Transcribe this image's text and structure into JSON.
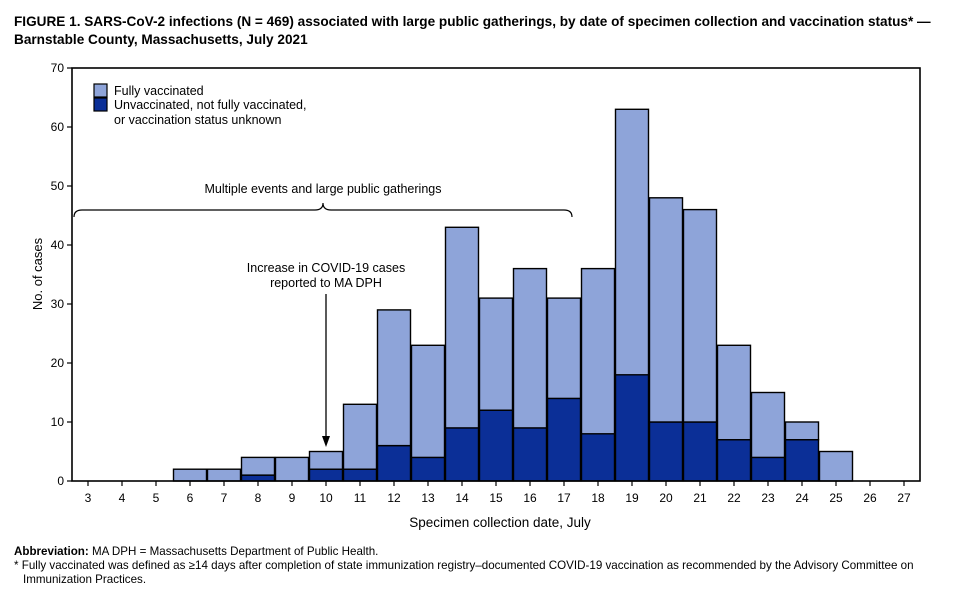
{
  "title": {
    "line1": "FIGURE 1. SARS-CoV-2 infections (N = 469) associated with large public gatherings, by date of specimen collection and vaccination status* —",
    "line2": "Barnstable County, Massachusetts, July 2021"
  },
  "chart_data": {
    "type": "bar",
    "stacked": true,
    "xlabel": "Specimen collection date, July",
    "ylabel": "No. of cases",
    "ylim": [
      0,
      70
    ],
    "yticks": [
      0,
      10,
      20,
      30,
      40,
      50,
      60,
      70
    ],
    "categories": [
      "3",
      "4",
      "5",
      "6",
      "7",
      "8",
      "9",
      "10",
      "11",
      "12",
      "13",
      "14",
      "15",
      "16",
      "17",
      "18",
      "19",
      "20",
      "21",
      "22",
      "23",
      "24",
      "25",
      "26",
      "27"
    ],
    "series": [
      {
        "name": "Unvaccinated, not fully vaccinated, or vaccination status unknown",
        "color": "#0b2f97",
        "values": [
          0,
          0,
          0,
          0,
          0,
          1,
          0,
          2,
          2,
          6,
          4,
          9,
          12,
          9,
          14,
          8,
          18,
          10,
          10,
          7,
          4,
          7,
          0,
          0,
          0
        ]
      },
      {
        "name": "Fully vaccinated",
        "color": "#8ea4d9",
        "values": [
          0,
          0,
          0,
          2,
          2,
          3,
          4,
          3,
          11,
          23,
          19,
          34,
          19,
          27,
          17,
          28,
          45,
          38,
          36,
          16,
          11,
          3,
          5,
          0,
          0
        ]
      }
    ],
    "legend": {
      "position": "top-left",
      "entries": [
        {
          "label_lines": [
            "Fully vaccinated"
          ],
          "color": "#8ea4d9"
        },
        {
          "label_lines": [
            "Unvaccinated, not fully vaccinated,",
            "or vaccination status unknown"
          ],
          "color": "#0b2f97"
        }
      ]
    },
    "annotations": {
      "bracket_label": "Multiple events and large public gatherings",
      "bracket_span": [
        "3",
        "17"
      ],
      "arrow_label_lines": [
        "Increase in COVID-19 cases",
        "reported to MA DPH"
      ],
      "arrow_category": "10"
    }
  },
  "footnotes": {
    "abbr_label": "Abbreviation:",
    "abbr_text": " MA DPH = Massachusetts Department of Public Health.",
    "star": "* Fully vaccinated was defined as ≥14 days after completion of state immunization registry–documented COVID-19 vaccination as recommended by the Advisory Committee on Immunization Practices."
  }
}
